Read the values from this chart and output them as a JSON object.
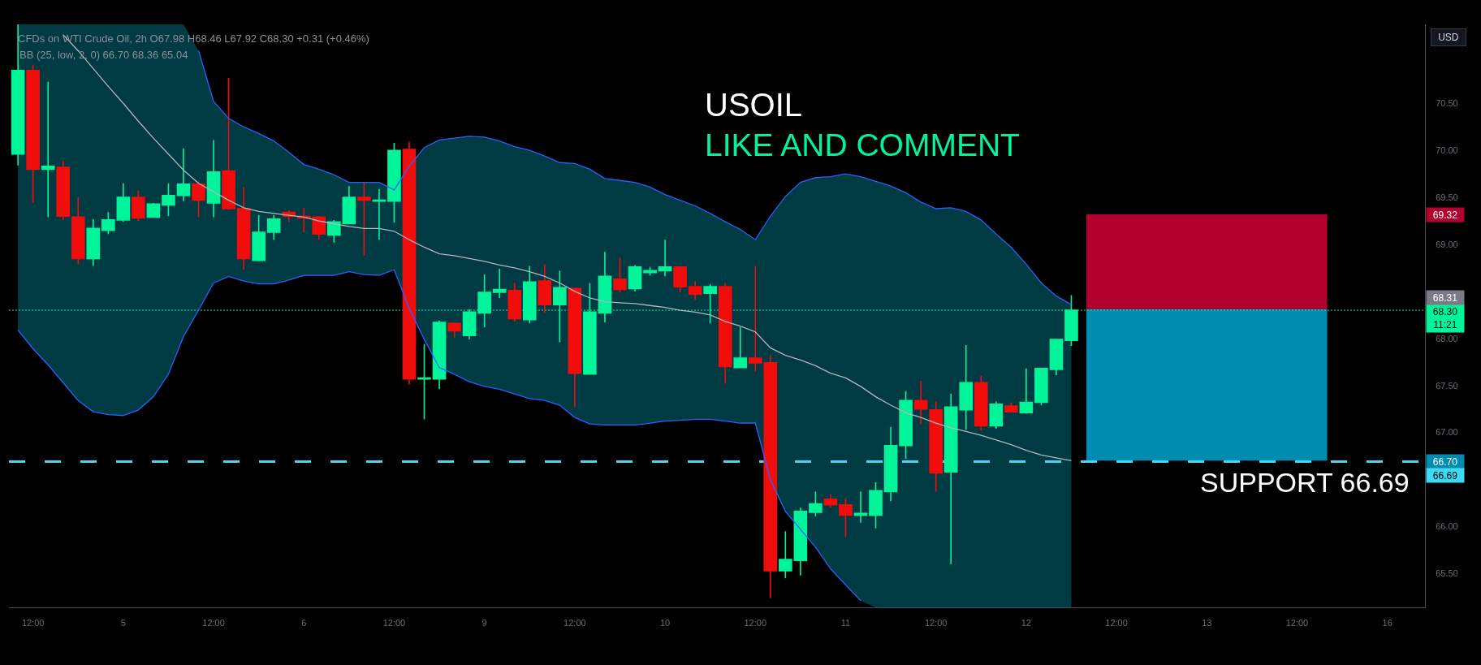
{
  "chart_data": {
    "type": "candlestick",
    "title": "CFDs on WTI Crude Oil, 2h O67.98 H68.46 L67.92 C68.30 +0.31 (+0.46%)",
    "subtitle": "BB (25, low, 2, 0) 66.70 68.36 65.04",
    "categories": [
      null,
      "12:00",
      null,
      null,
      null,
      null,
      null,
      "5",
      null,
      null,
      null,
      null,
      null,
      "12:00",
      null,
      null,
      null,
      null,
      null,
      "6",
      null,
      null,
      null,
      null,
      null,
      "12:00",
      null,
      null,
      null,
      null,
      null,
      "9",
      null,
      null,
      null,
      null,
      null,
      "12:00",
      null,
      null,
      null,
      null,
      null,
      "10",
      null,
      null,
      null,
      null,
      null,
      "12:00",
      null,
      null,
      null,
      null,
      null,
      "11",
      null,
      null,
      null,
      null,
      null,
      "12:00",
      null,
      null,
      null,
      null,
      null,
      "12",
      null,
      null,
      null,
      null,
      null,
      "12:00",
      null,
      null,
      null,
      null,
      null,
      "13",
      null,
      null,
      null,
      null,
      null,
      "12:00",
      null,
      null,
      null,
      null,
      null,
      "16",
      null,
      null
    ],
    "ohlc": [
      [
        69.96,
        71.34,
        69.84,
        70.85
      ],
      [
        70.85,
        70.91,
        69.44,
        69.8
      ],
      [
        69.8,
        70.73,
        69.29,
        69.83
      ],
      [
        69.82,
        69.89,
        69.26,
        69.3
      ],
      [
        69.29,
        69.5,
        68.79,
        68.85
      ],
      [
        68.85,
        69.27,
        68.77,
        69.17
      ],
      [
        69.15,
        69.34,
        69.11,
        69.26
      ],
      [
        69.26,
        69.65,
        69.24,
        69.5
      ],
      [
        69.5,
        69.57,
        69.25,
        69.28
      ],
      [
        69.29,
        69.44,
        69.29,
        69.43
      ],
      [
        69.42,
        69.65,
        69.3,
        69.52
      ],
      [
        69.52,
        70.02,
        69.46,
        69.64
      ],
      [
        69.64,
        69.67,
        69.29,
        69.47
      ],
      [
        69.44,
        70.11,
        69.29,
        69.77
      ],
      [
        69.78,
        70.77,
        69.37,
        69.38
      ],
      [
        69.38,
        69.61,
        68.73,
        68.85
      ],
      [
        68.83,
        69.31,
        68.82,
        69.13
      ],
      [
        69.13,
        69.31,
        69.05,
        69.27
      ],
      [
        69.34,
        69.36,
        69.24,
        69.3
      ],
      [
        69.3,
        69.39,
        69.13,
        69.28
      ],
      [
        69.29,
        69.3,
        69.05,
        69.11
      ],
      [
        69.1,
        69.26,
        69.02,
        69.24
      ],
      [
        69.22,
        69.62,
        69.22,
        69.5
      ],
      [
        69.5,
        69.66,
        68.88,
        69.47
      ],
      [
        69.46,
        69.59,
        69.05,
        69.47
      ],
      [
        69.46,
        70.08,
        69.23,
        70.0
      ],
      [
        70.01,
        70.09,
        67.51,
        67.57
      ],
      [
        67.57,
        67.94,
        67.14,
        67.58
      ],
      [
        67.57,
        68.19,
        67.46,
        68.17
      ],
      [
        68.16,
        68.17,
        68.01,
        68.08
      ],
      [
        68.03,
        68.31,
        67.99,
        68.28
      ],
      [
        68.27,
        68.68,
        68.12,
        68.49
      ],
      [
        68.49,
        68.74,
        68.43,
        68.52
      ],
      [
        68.51,
        68.59,
        68.18,
        68.21
      ],
      [
        68.2,
        68.77,
        68.16,
        68.6
      ],
      [
        68.61,
        68.79,
        68.27,
        68.36
      ],
      [
        68.36,
        68.72,
        67.96,
        68.54
      ],
      [
        68.53,
        68.54,
        67.27,
        67.63
      ],
      [
        67.62,
        68.59,
        67.62,
        68.28
      ],
      [
        68.27,
        68.92,
        68.17,
        68.66
      ],
      [
        68.63,
        68.86,
        68.49,
        68.52
      ],
      [
        68.53,
        68.78,
        68.5,
        68.76
      ],
      [
        68.7,
        68.76,
        68.67,
        68.72
      ],
      [
        68.72,
        69.05,
        68.66,
        68.76
      ],
      [
        68.76,
        68.76,
        68.49,
        68.55
      ],
      [
        68.55,
        68.61,
        68.41,
        68.47
      ],
      [
        68.48,
        68.58,
        68.16,
        68.55
      ],
      [
        68.55,
        68.59,
        67.52,
        67.7
      ],
      [
        67.69,
        68.12,
        67.69,
        67.79
      ],
      [
        67.79,
        68.77,
        67.65,
        67.74
      ],
      [
        67.74,
        67.82,
        65.24,
        65.53
      ],
      [
        65.53,
        65.95,
        65.45,
        65.65
      ],
      [
        65.64,
        66.2,
        65.48,
        66.16
      ],
      [
        66.15,
        66.37,
        66.11,
        66.24
      ],
      [
        66.29,
        66.34,
        66.2,
        66.23
      ],
      [
        66.23,
        66.3,
        65.89,
        66.12
      ],
      [
        66.12,
        66.37,
        66.04,
        66.14
      ],
      [
        66.12,
        66.47,
        65.98,
        66.38
      ],
      [
        66.37,
        67.06,
        66.27,
        66.86
      ],
      [
        66.86,
        67.44,
        66.72,
        67.34
      ],
      [
        67.34,
        67.55,
        67.09,
        67.25
      ],
      [
        67.24,
        67.33,
        66.37,
        66.57
      ],
      [
        66.58,
        67.41,
        65.6,
        67.27
      ],
      [
        67.24,
        67.93,
        67.03,
        67.53
      ],
      [
        67.53,
        67.6,
        67.02,
        67.07
      ],
      [
        67.07,
        67.33,
        67.04,
        67.3
      ],
      [
        67.28,
        67.32,
        67.21,
        67.22
      ],
      [
        67.21,
        67.68,
        67.2,
        67.32
      ],
      [
        67.32,
        67.68,
        67.29,
        67.68
      ],
      [
        67.67,
        67.99,
        67.61,
        67.99
      ],
      [
        67.98,
        68.46,
        67.92,
        68.3
      ],
      null,
      null,
      null,
      null,
      null,
      null,
      null,
      null,
      null,
      null,
      null,
      null,
      null,
      null,
      null,
      null,
      null,
      null,
      null,
      null,
      null,
      null,
      null
    ],
    "colors": [
      "#00f59b",
      "#f20d0d",
      "#00f59b",
      "#f20d0d",
      "#f20d0d",
      "#00f59b",
      "#00f59b",
      "#00f59b",
      "#f20d0d",
      "#00f59b",
      "#00f59b",
      "#00f59b",
      "#f20d0d",
      "#00f59b",
      "#f20d0d",
      "#f20d0d",
      "#00f59b",
      "#00f59b",
      "#f20d0d",
      "#f20d0d",
      "#f20d0d",
      "#00f59b",
      "#00f59b",
      "#f20d0d",
      "#00f59b",
      "#00f59b",
      "#f20d0d",
      "#00f59b",
      "#00f59b",
      "#f20d0d",
      "#00f59b",
      "#00f59b",
      "#00f59b",
      "#f20d0d",
      "#00f59b",
      "#f20d0d",
      "#00f59b",
      "#f20d0d",
      "#00f59b",
      "#00f59b",
      "#f20d0d",
      "#00f59b",
      "#00f59b",
      "#00f59b",
      "#f20d0d",
      "#f20d0d",
      "#00f59b",
      "#f20d0d",
      "#00f59b",
      "#f20d0d",
      "#f20d0d",
      "#00f59b",
      "#00f59b",
      "#00f59b",
      "#f20d0d",
      "#f20d0d",
      "#00f59b",
      "#00f59b",
      "#00f59b",
      "#00f59b",
      "#f20d0d",
      "#f20d0d",
      "#00f59b",
      "#00f59b",
      "#f20d0d",
      "#00f59b",
      "#f20d0d",
      "#00f59b",
      "#00f59b",
      "#00f59b",
      "#00f59b",
      null,
      null,
      null,
      null,
      null,
      null,
      null,
      null,
      null,
      null,
      null,
      null,
      null,
      null,
      null,
      null,
      null,
      null,
      null,
      null,
      null,
      null,
      null
    ],
    "series": [
      {
        "type": "line",
        "color": "#b2b5be",
        "values": [
          null,
          null,
          null,
          71.23,
          71.06,
          70.87,
          70.68,
          70.5,
          70.31,
          70.13,
          69.96,
          69.79,
          69.65,
          69.56,
          69.47,
          69.39,
          69.35,
          69.33,
          69.31,
          69.29,
          69.25,
          69.22,
          69.19,
          69.17,
          69.17,
          69.14,
          69.05,
          68.97,
          68.9,
          68.88,
          68.85,
          68.82,
          68.78,
          68.75,
          68.71,
          68.66,
          68.59,
          68.5,
          68.43,
          68.39,
          68.38,
          68.37,
          68.35,
          68.33,
          68.3,
          68.28,
          68.25,
          68.18,
          68.13,
          68.07,
          67.9,
          67.82,
          67.77,
          67.71,
          67.63,
          67.58,
          67.49,
          67.38,
          67.29,
          67.21,
          67.16,
          67.1,
          67.05,
          67.01,
          66.97,
          66.92,
          66.87,
          66.81,
          66.76,
          66.73,
          66.7,
          null,
          null,
          null,
          null,
          null,
          null,
          null,
          null,
          null,
          null,
          null,
          null,
          null,
          null,
          null,
          null,
          null,
          null,
          null,
          null,
          null,
          null,
          null
        ],
        "upper": [
          71.34,
          71.34,
          71.34,
          71.34,
          71.34,
          71.34,
          71.34,
          71.34,
          71.34,
          71.34,
          71.34,
          71.34,
          71.06,
          70.52,
          70.34,
          70.25,
          70.18,
          70.1,
          69.98,
          69.85,
          69.8,
          69.74,
          69.66,
          69.66,
          69.66,
          69.58,
          69.83,
          70.03,
          70.11,
          70.13,
          70.15,
          70.14,
          70.1,
          70.04,
          70.0,
          69.94,
          69.87,
          69.86,
          69.8,
          69.7,
          69.68,
          69.66,
          69.61,
          69.53,
          69.47,
          69.41,
          69.33,
          69.24,
          69.16,
          69.05,
          69.3,
          69.51,
          69.66,
          69.71,
          69.72,
          69.75,
          69.72,
          69.67,
          69.62,
          69.55,
          69.45,
          69.38,
          69.39,
          69.35,
          69.26,
          69.11,
          68.97,
          68.79,
          68.59,
          68.45,
          68.36,
          null,
          null,
          null,
          null,
          null,
          null,
          null,
          null,
          null,
          null,
          null,
          null,
          null,
          null,
          null,
          null,
          null,
          null,
          null,
          null,
          null,
          null,
          null
        ],
        "lower": [
          68.09,
          67.89,
          67.72,
          67.53,
          67.34,
          67.22,
          67.19,
          67.18,
          67.24,
          67.38,
          67.62,
          68.02,
          68.3,
          68.59,
          68.66,
          68.61,
          68.58,
          68.58,
          68.62,
          68.67,
          68.67,
          68.67,
          68.71,
          68.68,
          68.67,
          68.73,
          68.32,
          67.99,
          67.69,
          67.62,
          67.54,
          67.49,
          67.46,
          67.41,
          67.36,
          67.34,
          67.29,
          67.16,
          67.09,
          67.08,
          67.08,
          67.08,
          67.1,
          67.12,
          67.13,
          67.14,
          67.14,
          67.12,
          67.1,
          67.1,
          66.5,
          66.16,
          65.97,
          65.78,
          65.55,
          65.38,
          65.21,
          65.14,
          65.14,
          65.14,
          65.14,
          65.14,
          65.14,
          65.14,
          65.14,
          65.14,
          65.14,
          65.14,
          65.14,
          65.14,
          65.14,
          null,
          null,
          null,
          null,
          null,
          null,
          null,
          null,
          null,
          null,
          null,
          null,
          null,
          null,
          null,
          null,
          null,
          null,
          null,
          null,
          null,
          null,
          null
        ]
      },
      {
        "type": "line",
        "color": "#2962ff",
        "values": [
          null,
          null,
          null,
          null,
          null,
          null,
          null,
          null,
          null,
          null,
          null,
          null,
          71.06,
          70.52,
          70.34,
          70.25,
          70.18,
          70.1,
          69.98,
          69.85,
          69.8,
          69.74,
          69.66,
          69.66,
          69.66,
          69.58,
          69.83,
          70.03,
          70.11,
          70.13,
          70.15,
          70.14,
          70.1,
          70.04,
          70.0,
          69.94,
          69.87,
          69.86,
          69.8,
          69.7,
          69.68,
          69.66,
          69.61,
          69.53,
          69.47,
          69.41,
          69.33,
          69.24,
          69.16,
          69.05,
          69.3,
          69.51,
          69.66,
          69.71,
          69.72,
          69.75,
          69.72,
          69.67,
          69.62,
          69.55,
          69.45,
          69.38,
          69.39,
          69.35,
          69.26,
          69.11,
          68.97,
          68.79,
          68.59,
          68.45,
          68.36,
          null,
          null,
          null,
          null,
          null,
          null,
          null,
          null,
          null,
          null,
          null,
          null,
          null,
          null,
          null,
          null,
          null,
          null,
          null,
          null,
          null,
          null,
          null
        ]
      },
      {
        "type": "line",
        "color": "#2962ff",
        "values": [
          68.09,
          67.89,
          67.72,
          67.53,
          67.34,
          67.22,
          67.19,
          67.18,
          67.24,
          67.38,
          67.62,
          68.02,
          68.3,
          68.59,
          68.66,
          68.61,
          68.58,
          68.58,
          68.62,
          68.67,
          68.67,
          68.67,
          68.71,
          68.68,
          68.67,
          68.73,
          68.32,
          67.99,
          67.69,
          67.62,
          67.54,
          67.49,
          67.46,
          67.41,
          67.36,
          67.34,
          67.29,
          67.16,
          67.09,
          67.08,
          67.08,
          67.08,
          67.1,
          67.12,
          67.13,
          67.14,
          67.14,
          67.12,
          67.1,
          67.1,
          66.5,
          66.16,
          65.97,
          65.78,
          65.55,
          65.38,
          65.21,
          null,
          null,
          null,
          null,
          null,
          null,
          null,
          null,
          null,
          null,
          null,
          null,
          null,
          null,
          null,
          null,
          null,
          null,
          null,
          null,
          null,
          null,
          null,
          null,
          null,
          null,
          null,
          null,
          null,
          null,
          null,
          null,
          null,
          null,
          null,
          null,
          null
        ]
      }
    ],
    "ylim": [
      65.14,
      71.34
    ],
    "yticks": [
      {
        "value": 65.5,
        "label": "65.50"
      },
      {
        "value": 66,
        "label": "66.00"
      },
      {
        "value": 67,
        "label": "67.00"
      },
      {
        "value": 67.5,
        "label": "67.50"
      },
      {
        "value": 68,
        "label": "68.00"
      },
      {
        "value": 69,
        "label": "69.00"
      },
      {
        "value": 69.5,
        "label": "69.50"
      },
      {
        "value": 70,
        "label": "70.00"
      },
      {
        "value": 70.5,
        "label": "70.50"
      }
    ],
    "bands": [
      {
        "axis": "y",
        "from": 68.31,
        "to": 69.32,
        "color": "#b2002f"
      },
      {
        "axis": "y",
        "from": 66.7,
        "to": 68.31,
        "color": "#008cb0"
      }
    ],
    "ref_lines": [
      {
        "axis": "y",
        "value": 66.69,
        "label": "SUPPORT 66.69",
        "color": "#40d9f5",
        "line_style": "dashed"
      },
      {
        "axis": "y",
        "value": 68.3,
        "color": "#00f59b",
        "line_style": "dotted"
      }
    ],
    "annotations": [
      "USOIL",
      "LIKE AND COMMENT",
      "USD",
      "68.30\n11:21",
      "66.70",
      "69.32",
      "68.31",
      "66.69"
    ]
  }
}
